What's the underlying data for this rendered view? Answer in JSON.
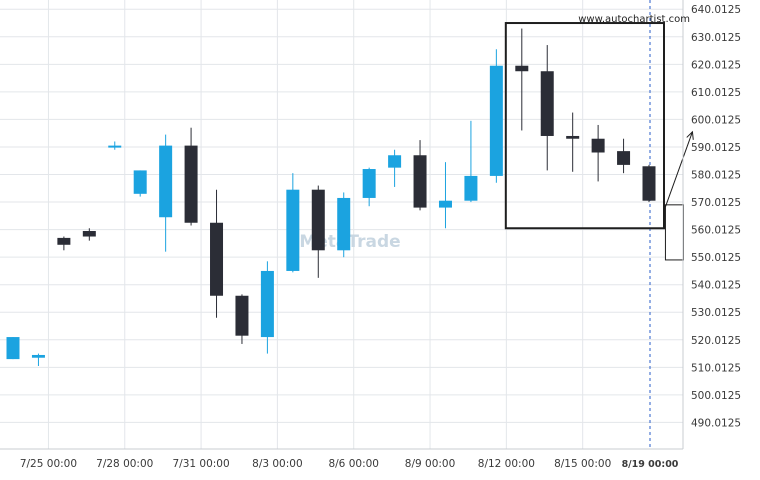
{
  "watermark": {
    "url": "www.autochartist.com",
    "logo_text": "MetaTrade"
  },
  "colors": {
    "bull": "#1ba3e0",
    "bear": "#2b2d36",
    "grid": "#e3e6ea",
    "axis_text": "#3a3a3a",
    "pattern_box": "#1e1e1e",
    "forecast_box": "#1e1e1e",
    "current_time_line": "#2a5ec9",
    "watermark": "#c9d7e2"
  },
  "chart_data": {
    "type": "candlestick",
    "title": "",
    "xlabel": "",
    "ylabel": "",
    "ylim": [
      482.0,
      641.0
    ],
    "y_ticks": [
      "490.0125",
      "500.0125",
      "510.0125",
      "520.0125",
      "530.0125",
      "540.0125",
      "550.0125",
      "560.0125",
      "570.0125",
      "580.0125",
      "590.0125",
      "600.0125",
      "610.0125",
      "620.0125",
      "630.0125",
      "640.0125"
    ],
    "x_ticks": [
      {
        "index": 1,
        "label": "7/25 00:00"
      },
      {
        "index": 4,
        "label": "7/28 00:00"
      },
      {
        "index": 7,
        "label": "7/31 00:00"
      },
      {
        "index": 10,
        "label": "8/3 00:00"
      },
      {
        "index": 13,
        "label": "8/6 00:00"
      },
      {
        "index": 16,
        "label": "8/9 00:00"
      },
      {
        "index": 19,
        "label": "8/12 00:00"
      },
      {
        "index": 22,
        "label": "8/15 00:00"
      },
      {
        "index": 25,
        "label": "8/19 00:00",
        "current": true
      }
    ],
    "candles": [
      {
        "open": 513.0,
        "high": 521.0,
        "low": 513.0,
        "close": 521.0
      },
      {
        "open": 513.5,
        "high": 515.0,
        "low": 510.5,
        "close": 514.5
      },
      {
        "open": 557.0,
        "high": 557.5,
        "low": 552.5,
        "close": 554.5
      },
      {
        "open": 559.5,
        "high": 560.5,
        "low": 556.0,
        "close": 557.5
      },
      {
        "open": 590.5,
        "high": 592.0,
        "low": 589.0,
        "close": 590.5
      },
      {
        "open": 573.0,
        "high": 581.5,
        "low": 572.0,
        "close": 581.5
      },
      {
        "open": 564.5,
        "high": 594.5,
        "low": 552.0,
        "close": 590.5
      },
      {
        "open": 590.5,
        "high": 597.0,
        "low": 561.5,
        "close": 562.5
      },
      {
        "open": 562.5,
        "high": 574.5,
        "low": 528.0,
        "close": 536.0
      },
      {
        "open": 536.0,
        "high": 536.5,
        "low": 518.5,
        "close": 521.5
      },
      {
        "open": 521.0,
        "high": 548.5,
        "low": 515.0,
        "close": 545.0
      },
      {
        "open": 545.0,
        "high": 580.5,
        "low": 544.5,
        "close": 574.5
      },
      {
        "open": 574.5,
        "high": 576.0,
        "low": 542.5,
        "close": 552.5
      },
      {
        "open": 552.5,
        "high": 573.5,
        "low": 550.0,
        "close": 571.5
      },
      {
        "open": 571.5,
        "high": 582.5,
        "low": 568.5,
        "close": 582.0
      },
      {
        "open": 582.5,
        "high": 589.0,
        "low": 575.5,
        "close": 587.0
      },
      {
        "open": 587.0,
        "high": 592.5,
        "low": 567.0,
        "close": 568.0
      },
      {
        "open": 568.0,
        "high": 584.5,
        "low": 560.5,
        "close": 570.5
      },
      {
        "open": 570.5,
        "high": 599.5,
        "low": 570.0,
        "close": 579.5
      },
      {
        "open": 579.5,
        "high": 625.5,
        "low": 577.0,
        "close": 619.5
      },
      {
        "open": 619.5,
        "high": 633.0,
        "low": 596.0,
        "close": 617.5
      },
      {
        "open": 617.5,
        "high": 627.0,
        "low": 581.5,
        "close": 594.0
      },
      {
        "open": 594.0,
        "high": 602.5,
        "low": 581.0,
        "close": 593.0
      },
      {
        "open": 593.0,
        "high": 598.0,
        "low": 577.5,
        "close": 588.0
      },
      {
        "open": 588.5,
        "high": 593.0,
        "low": 580.5,
        "close": 583.5
      },
      {
        "open": 583.0,
        "high": 583.5,
        "low": 570.0,
        "close": 570.5
      }
    ],
    "pattern_range": {
      "start_index": 20,
      "end_index": 25,
      "high": 635.0,
      "low": 560.5
    },
    "forecast_range": {
      "index": 26,
      "high": 569.0,
      "low": 549.0
    },
    "breakout_projection": {
      "from_index": 26,
      "from_price": 569.0,
      "to_price": 595.5
    },
    "current_time_index": 25
  }
}
